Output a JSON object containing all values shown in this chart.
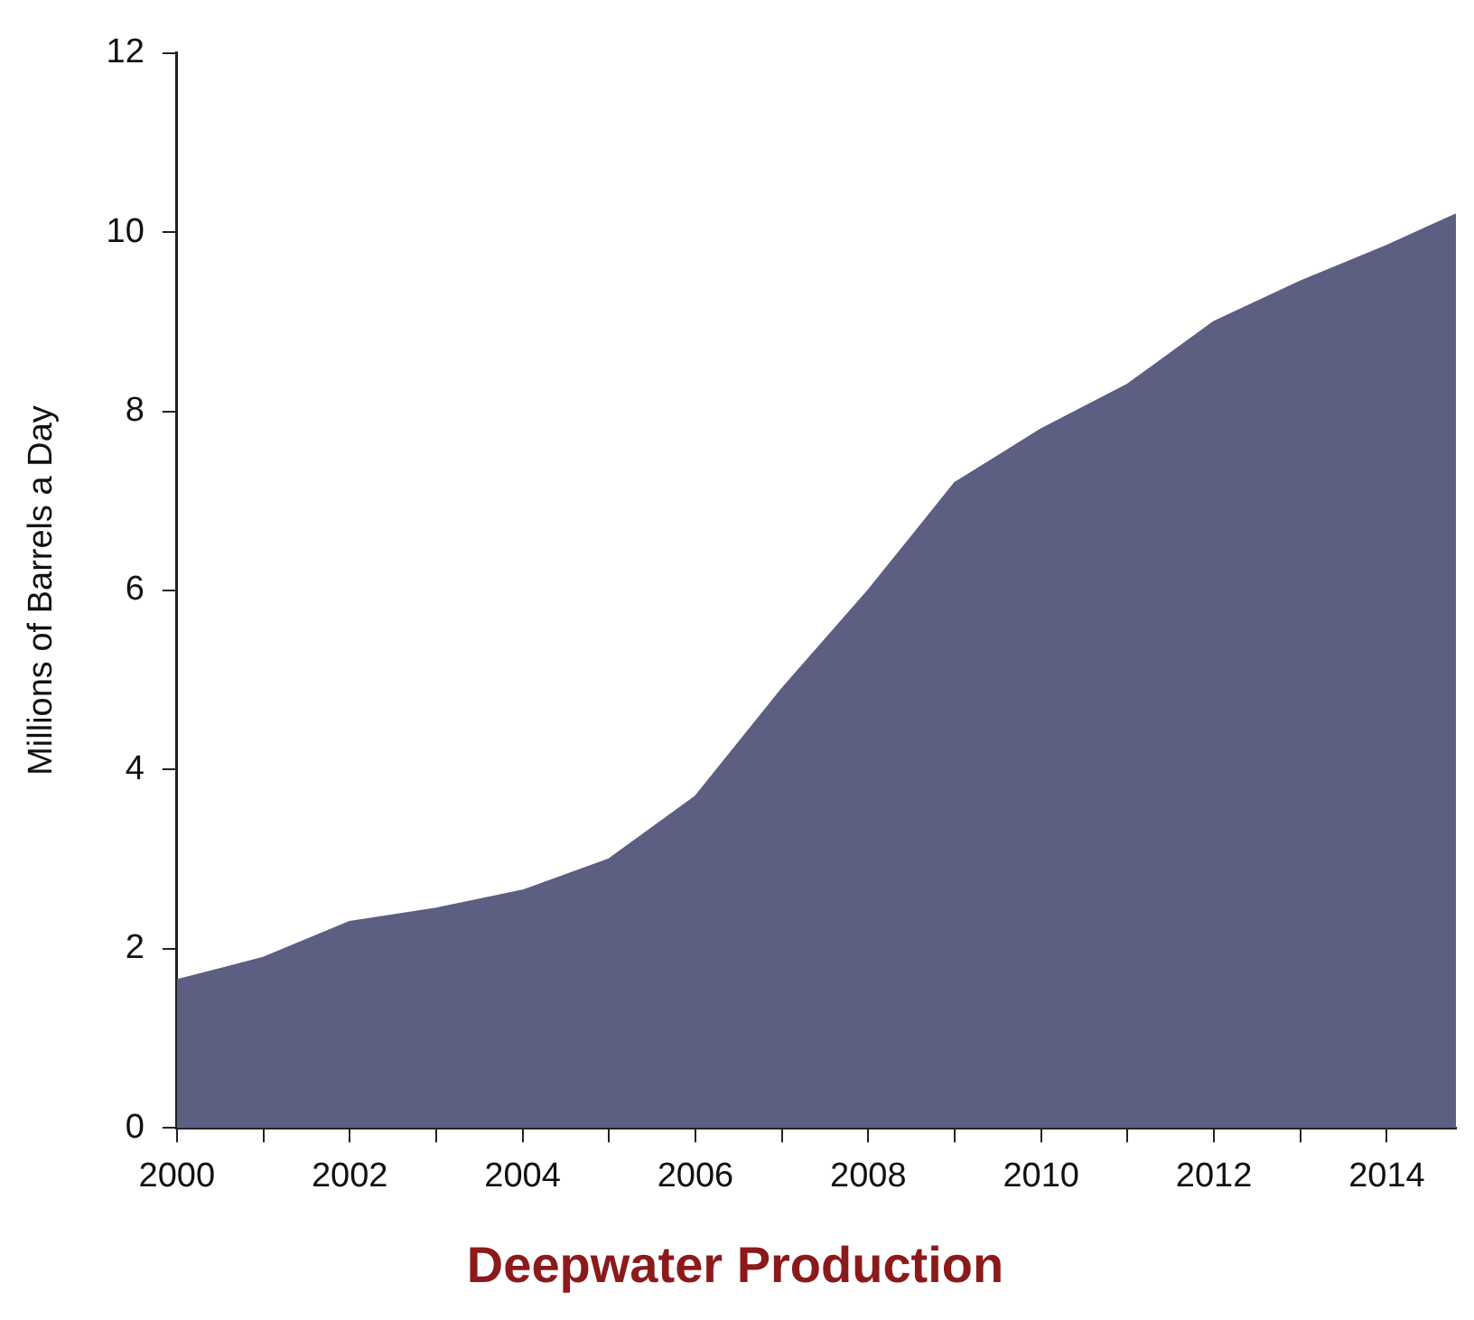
{
  "chart_data": {
    "type": "area",
    "title": "Deepwater Production",
    "ylabel": "Millions of Barrels a Day",
    "x": [
      2000,
      2001,
      2002,
      2003,
      2004,
      2005,
      2006,
      2007,
      2008,
      2009,
      2010,
      2011,
      2012,
      2013,
      2014,
      2014.8
    ],
    "series": [
      {
        "color": "#5c5e82",
        "values": [
          1.65,
          1.9,
          2.3,
          2.45,
          2.65,
          3.0,
          3.7,
          4.9,
          6.0,
          7.2,
          7.8,
          8.3,
          9.0,
          9.45,
          9.85,
          10.2
        ]
      }
    ],
    "xlim": [
      2000,
      2014.8
    ],
    "xticks": [
      2000,
      {
        "value": 2001,
        "label": null
      },
      2002,
      {
        "value": 2003,
        "label": null
      },
      2004,
      {
        "value": 2005,
        "label": null
      },
      2006,
      {
        "value": 2007,
        "label": null
      },
      2008,
      {
        "value": 2009,
        "label": null
      },
      2010,
      {
        "value": 2011,
        "label": null
      },
      2012,
      {
        "value": 2013,
        "label": null
      },
      2014
    ],
    "ylim": [
      0,
      12
    ],
    "yticks": [
      0,
      2,
      4,
      6,
      8,
      10,
      12
    ],
    "grid": false,
    "legend": false
  }
}
